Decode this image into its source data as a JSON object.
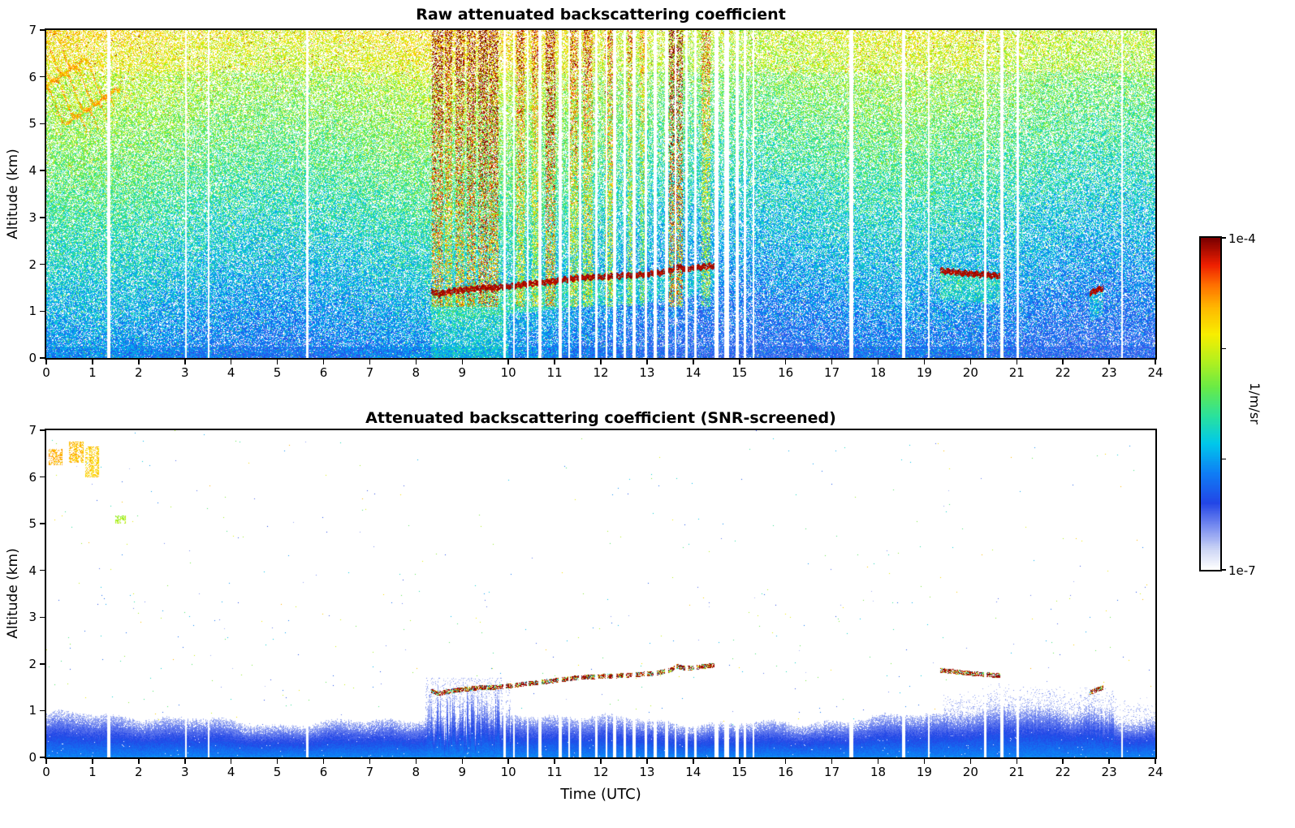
{
  "figure": {
    "background_color": "#ffffff",
    "axis_color": "#000000",
    "colorbar": {
      "orientation": "vertical",
      "max_label": "1e-4",
      "min_label": "1e-7",
      "units_label": "1/m/sr",
      "scale": "log",
      "colormap": "white-paleblue-blue-cyan-green-yellow-orange-red-darkred"
    }
  },
  "chart_data": [
    {
      "type": "heatmap",
      "title": "Raw attenuated backscattering coefficient",
      "xlabel": "",
      "ylabel": "Altitude (km)",
      "xlim": [
        0,
        24
      ],
      "ylim": [
        0,
        7
      ],
      "xticks": [
        0,
        1,
        2,
        3,
        4,
        5,
        6,
        7,
        8,
        9,
        10,
        11,
        12,
        13,
        14,
        15,
        16,
        17,
        18,
        19,
        20,
        21,
        22,
        23,
        24
      ],
      "yticks": [
        0,
        1,
        2,
        3,
        4,
        5,
        6,
        7
      ],
      "value_min": 1e-07,
      "value_max": 0.0001,
      "units": "1/m/sr",
      "description": "Noisy lidar raw attenuated backscatter; blue speckle near surface grading to green/yellow noise aloft, red precipitation streaks 8.3-14.5 UTC, dark-red cloud layer near 1.4-2 km, cirrus streaks upper-left, white vertical data gaps.",
      "features": {
        "noise": {
          "base_value": 0.25,
          "value_per_km": 0.057,
          "white_fraction_base": 0.18,
          "white_fraction_per_km": 0.045
        },
        "data_gap_times_utc": [
          [
            1.35,
            0.03
          ],
          [
            3.02,
            0.02
          ],
          [
            3.52,
            0.02
          ],
          [
            5.65,
            0.03
          ],
          [
            9.92,
            0.03
          ],
          [
            10.12,
            0.02
          ],
          [
            10.42,
            0.02
          ],
          [
            10.68,
            0.03
          ],
          [
            11.12,
            0.03
          ],
          [
            11.32,
            0.02
          ],
          [
            11.55,
            0.03
          ],
          [
            11.9,
            0.03
          ],
          [
            12.12,
            0.02
          ],
          [
            12.3,
            0.04
          ],
          [
            12.52,
            0.03
          ],
          [
            12.72,
            0.03
          ],
          [
            12.98,
            0.03
          ],
          [
            13.18,
            0.03
          ],
          [
            13.42,
            0.03
          ],
          [
            13.62,
            0.02
          ],
          [
            13.85,
            0.03
          ],
          [
            14.05,
            0.03
          ],
          [
            14.5,
            0.04
          ],
          [
            14.72,
            0.05
          ],
          [
            14.95,
            0.04
          ],
          [
            15.12,
            0.03
          ],
          [
            15.3,
            0.02
          ],
          [
            17.42,
            0.04
          ],
          [
            18.55,
            0.03
          ],
          [
            19.1,
            0.02
          ],
          [
            20.32,
            0.03
          ],
          [
            20.68,
            0.04
          ],
          [
            21.02,
            0.02
          ],
          [
            23.28,
            0.02
          ]
        ],
        "rain_streak_intervals_utc": [
          [
            8.35,
            8.6,
            0.5
          ],
          [
            8.62,
            8.78,
            0.4
          ],
          [
            8.85,
            9.05,
            0.45
          ],
          [
            9.1,
            9.3,
            0.5
          ],
          [
            9.35,
            9.55,
            0.55
          ],
          [
            9.58,
            9.78,
            0.5
          ],
          [
            10.18,
            10.34,
            0.35
          ],
          [
            10.5,
            10.64,
            0.3
          ],
          [
            10.8,
            11.02,
            0.5
          ],
          [
            11.3,
            11.5,
            0.35
          ],
          [
            11.62,
            11.82,
            0.35
          ],
          [
            12.08,
            12.26,
            0.35
          ],
          [
            12.58,
            12.76,
            0.3
          ],
          [
            12.84,
            12.95,
            0.25
          ],
          [
            13.48,
            13.78,
            0.6
          ],
          [
            14.18,
            14.38,
            0.35
          ]
        ],
        "cloud_layer_track_segments": [
          [
            [
              8.32,
              1.42
            ],
            [
              8.5,
              1.36
            ],
            [
              8.65,
              1.4
            ],
            [
              8.9,
              1.44
            ],
            [
              9.2,
              1.47
            ],
            [
              9.5,
              1.5
            ],
            [
              9.75,
              1.5
            ],
            [
              10.05,
              1.53
            ],
            [
              10.35,
              1.57
            ],
            [
              10.65,
              1.6
            ],
            [
              10.9,
              1.63
            ],
            [
              11.15,
              1.66
            ],
            [
              11.45,
              1.7
            ],
            [
              11.75,
              1.72
            ],
            [
              12.0,
              1.73
            ],
            [
              12.3,
              1.74
            ],
            [
              12.6,
              1.76
            ],
            [
              12.9,
              1.78
            ],
            [
              13.2,
              1.8
            ],
            [
              13.5,
              1.86
            ],
            [
              13.65,
              1.95
            ],
            [
              13.85,
              1.9
            ],
            [
              14.1,
              1.93
            ],
            [
              14.35,
              1.96
            ],
            [
              14.5,
              1.98
            ]
          ],
          [
            [
              19.35,
              1.86
            ],
            [
              19.6,
              1.84
            ],
            [
              19.85,
              1.81
            ],
            [
              20.1,
              1.79
            ],
            [
              20.35,
              1.77
            ],
            [
              20.6,
              1.75
            ],
            [
              20.72,
              1.74
            ]
          ],
          [
            [
              22.58,
              1.38
            ],
            [
              22.72,
              1.44
            ],
            [
              22.88,
              1.5
            ]
          ]
        ],
        "cirrus_streaks": {
          "time_range_utc": [
            0,
            1.7
          ],
          "alt_range_km": [
            4.85,
            7.0
          ],
          "n_lines": 5
        }
      }
    },
    {
      "type": "heatmap",
      "title": "Attenuated backscattering coefficient (SNR-screened)",
      "xlabel": "Time (UTC)",
      "ylabel": "Altitude (km)",
      "xlim": [
        0,
        24
      ],
      "ylim": [
        0,
        7
      ],
      "xticks": [
        0,
        1,
        2,
        3,
        4,
        5,
        6,
        7,
        8,
        9,
        10,
        11,
        12,
        13,
        14,
        15,
        16,
        17,
        18,
        19,
        20,
        21,
        22,
        23,
        24
      ],
      "yticks": [
        0,
        1,
        2,
        3,
        4,
        5,
        6,
        7
      ],
      "value_min": 1e-07,
      "value_max": 0.0001,
      "units": "1/m/sr",
      "description": "Screened backscatter: white above SNR threshold, blue boundary-layer band below ~0.9 km, dark cloud-layer segments near 1.4-2 km, orange cirrus patches upper-left, white vertical data gaps.",
      "features": {
        "boundary_layer": {
          "mean_top_km": 0.82,
          "range_km": [
            0.4,
            1.5
          ]
        },
        "rain_region_utc": [
          8.2,
          10.05
        ],
        "fuzzy_band_region_utc": [
          19.4,
          23.9
        ],
        "data_gap_times_utc": [
          [
            1.35,
            0.03
          ],
          [
            3.02,
            0.02
          ],
          [
            3.52,
            0.02
          ],
          [
            5.65,
            0.03
          ],
          [
            9.92,
            0.03
          ],
          [
            10.12,
            0.02
          ],
          [
            10.42,
            0.02
          ],
          [
            10.68,
            0.03
          ],
          [
            11.12,
            0.03
          ],
          [
            11.32,
            0.02
          ],
          [
            11.55,
            0.03
          ],
          [
            11.9,
            0.03
          ],
          [
            12.12,
            0.02
          ],
          [
            12.3,
            0.04
          ],
          [
            12.52,
            0.03
          ],
          [
            12.72,
            0.03
          ],
          [
            12.98,
            0.03
          ],
          [
            13.18,
            0.03
          ],
          [
            13.42,
            0.03
          ],
          [
            13.62,
            0.02
          ],
          [
            13.85,
            0.03
          ],
          [
            14.05,
            0.03
          ],
          [
            14.5,
            0.04
          ],
          [
            14.72,
            0.05
          ],
          [
            14.95,
            0.04
          ],
          [
            15.12,
            0.03
          ],
          [
            15.3,
            0.02
          ],
          [
            17.42,
            0.04
          ],
          [
            18.55,
            0.03
          ],
          [
            19.1,
            0.02
          ],
          [
            20.32,
            0.03
          ],
          [
            20.68,
            0.04
          ],
          [
            21.02,
            0.02
          ],
          [
            23.28,
            0.02
          ]
        ],
        "cloud_layer_track_segments": [
          [
            [
              8.32,
              1.42
            ],
            [
              8.5,
              1.36
            ],
            [
              8.65,
              1.4
            ],
            [
              8.9,
              1.44
            ],
            [
              9.2,
              1.47
            ],
            [
              9.5,
              1.5
            ],
            [
              9.75,
              1.5
            ],
            [
              10.05,
              1.53
            ],
            [
              10.35,
              1.57
            ],
            [
              10.65,
              1.6
            ],
            [
              10.9,
              1.63
            ],
            [
              11.15,
              1.66
            ],
            [
              11.45,
              1.7
            ],
            [
              11.75,
              1.72
            ],
            [
              12.0,
              1.73
            ],
            [
              12.3,
              1.74
            ],
            [
              12.6,
              1.76
            ],
            [
              12.9,
              1.78
            ],
            [
              13.2,
              1.8
            ],
            [
              13.5,
              1.86
            ],
            [
              13.65,
              1.95
            ],
            [
              13.85,
              1.9
            ],
            [
              14.1,
              1.93
            ],
            [
              14.35,
              1.96
            ],
            [
              14.5,
              1.98
            ]
          ],
          [
            [
              19.35,
              1.86
            ],
            [
              19.6,
              1.84
            ],
            [
              19.85,
              1.81
            ],
            [
              20.1,
              1.79
            ],
            [
              20.35,
              1.77
            ],
            [
              20.6,
              1.75
            ],
            [
              20.72,
              1.74
            ]
          ],
          [
            [
              22.58,
              1.38
            ],
            [
              22.72,
              1.44
            ],
            [
              22.88,
              1.5
            ]
          ]
        ],
        "cirrus_patches": [
          [
            0.05,
            0.35,
            6.25,
            6.6,
            0.8
          ],
          [
            0.5,
            0.8,
            6.3,
            6.75,
            0.78
          ],
          [
            0.85,
            1.15,
            6.0,
            6.65,
            0.76
          ],
          [
            1.5,
            1.72,
            5.0,
            5.18,
            0.62
          ]
        ]
      }
    }
  ]
}
